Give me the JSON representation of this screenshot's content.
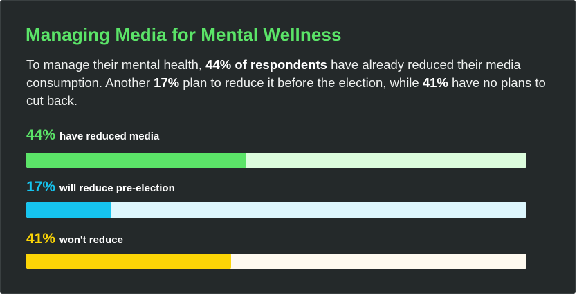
{
  "title": "Managing Media for Mental Wellness",
  "subtitle": {
    "p1": "To manage their mental health, ",
    "b1": "44% of respondents",
    "p2": " have already reduced their media consumption. Another ",
    "b2": "17%",
    "p3": " plan to reduce it before the election, while ",
    "b3": "41%",
    "p4": " have no plans to cut back."
  },
  "chart_data": {
    "type": "bar",
    "categories": [
      "have reduced media",
      "will reduce pre-election",
      "won't reduce"
    ],
    "values": [
      44,
      17,
      41
    ],
    "value_labels": [
      "44%",
      "17%",
      "41%"
    ],
    "ylim": [
      0,
      100
    ],
    "fill_colors": [
      "#5be468",
      "#16c4ef",
      "#fcd506"
    ],
    "track_colors": [
      "#dcfcdd",
      "#ddf6fd",
      "#fef9ef"
    ]
  }
}
